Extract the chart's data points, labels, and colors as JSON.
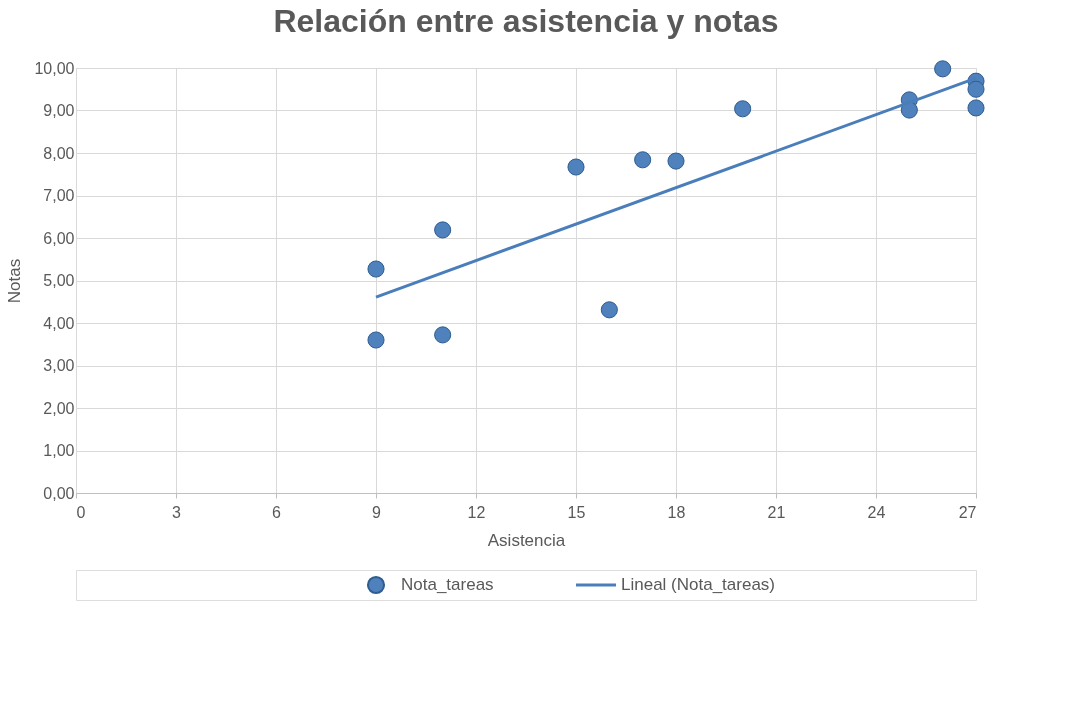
{
  "chart_data": {
    "type": "scatter",
    "title": "Relación entre asistencia y notas",
    "xlabel": "Asistencia",
    "ylabel": "Notas",
    "series": [
      {
        "name": "Nota_tareas",
        "color": "#4f81bd",
        "marker": "circle",
        "x": [
          9,
          9,
          11,
          11,
          15,
          16,
          17,
          18,
          20,
          25,
          25,
          26,
          27,
          27,
          27
        ],
        "values": [
          5.27,
          3.6,
          6.19,
          3.72,
          7.67,
          4.31,
          7.84,
          7.81,
          9.04,
          9.25,
          9.01,
          9.98,
          9.69,
          9.5,
          9.06
        ]
      },
      {
        "name": "Lineal (Nota_tareas)",
        "type": "line",
        "color": "#4a7ebb",
        "line_style": "solid",
        "x": [
          9,
          27
        ],
        "values": [
          4.61,
          9.76
        ]
      }
    ],
    "xlim": [
      0,
      27
    ],
    "xticks": [
      0,
      3,
      6,
      9,
      12,
      15,
      18,
      21,
      24,
      27
    ],
    "ylim": [
      0,
      10
    ],
    "yticks": [
      {
        "value": 0,
        "label": "0,00"
      },
      {
        "value": 1,
        "label": "1,00"
      },
      {
        "value": 2,
        "label": "2,00"
      },
      {
        "value": 3,
        "label": "3,00"
      },
      {
        "value": 4,
        "label": "4,00"
      },
      {
        "value": 5,
        "label": "5,00"
      },
      {
        "value": 6,
        "label": "6,00"
      },
      {
        "value": 7,
        "label": "7,00"
      },
      {
        "value": 8,
        "label": "8,00"
      },
      {
        "value": 9,
        "label": "9,00"
      },
      {
        "value": 10,
        "label": "10,00"
      }
    ],
    "grid": true,
    "legend": "bottom"
  }
}
